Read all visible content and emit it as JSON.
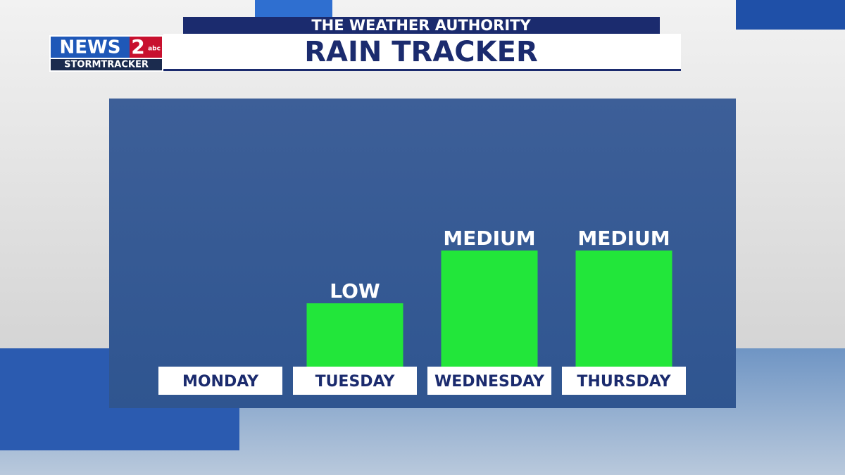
{
  "logo": {
    "name": "NEWS",
    "number": "2",
    "network": "abc",
    "tagline": "STORMTRACKER"
  },
  "chart_data": {
    "type": "bar",
    "subtitle": "THE WEATHER AUTHORITY",
    "title": "RAIN TRACKER",
    "categories": [
      "MONDAY",
      "TUESDAY",
      "WEDNESDAY",
      "THURSDAY"
    ],
    "values": [
      0,
      90,
      165,
      165
    ],
    "value_labels": [
      null,
      "LOW",
      "MEDIUM",
      "MEDIUM"
    ],
    "color": "#22e63a"
  }
}
